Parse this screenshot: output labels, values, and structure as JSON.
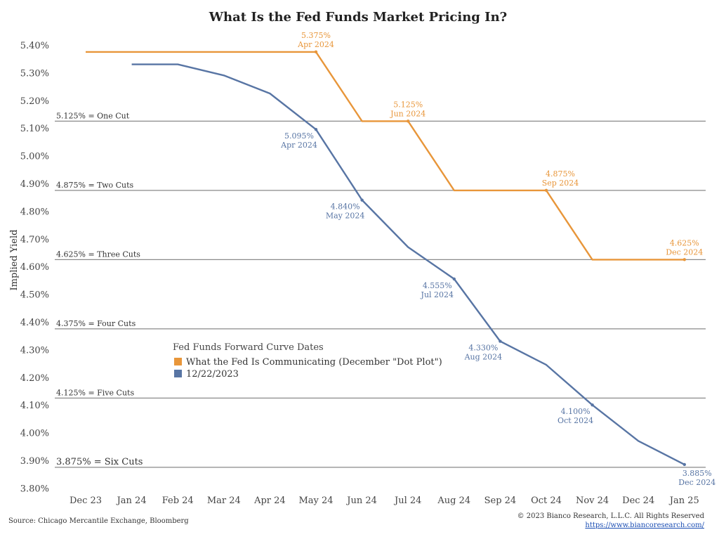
{
  "chart_data": {
    "type": "line",
    "title": "What Is the Fed Funds Market Pricing In?",
    "ylabel": "Implied Yield",
    "xlabel": "",
    "ylim": [
      3.8,
      5.4
    ],
    "yticks": [
      "5.40%",
      "5.30%",
      "5.20%",
      "5.10%",
      "5.00%",
      "4.90%",
      "4.80%",
      "4.70%",
      "4.60%",
      "4.50%",
      "4.40%",
      "4.30%",
      "4.20%",
      "4.10%",
      "4.00%",
      "3.90%",
      "3.80%"
    ],
    "ytick_values": [
      5.4,
      5.3,
      5.2,
      5.1,
      5.0,
      4.9,
      4.8,
      4.7,
      4.6,
      4.5,
      4.4,
      4.3,
      4.2,
      4.1,
      4.0,
      3.9,
      3.8
    ],
    "categories": [
      "Dec 23",
      "Jan 24",
      "Feb 24",
      "Mar 24",
      "Apr 24",
      "May 24",
      "Jun 24",
      "Jul 24",
      "Aug 24",
      "Sep 24",
      "Oct 24",
      "Nov 24",
      "Dec 24",
      "Jan 25"
    ],
    "grid": false,
    "legend": {
      "title": "Fed Funds Forward Curve Dates",
      "placement": "center-left",
      "entries": [
        {
          "label": "What the Fed Is Communicating (December \"Dot Plot\")",
          "color": "#E8963A"
        },
        {
          "label": "12/22/2023",
          "color": "#5875A4"
        }
      ]
    },
    "reference_lines": [
      {
        "label": "5.125% = One Cut",
        "value": 5.125
      },
      {
        "label": "4.875% = Two Cuts",
        "value": 4.875
      },
      {
        "label": "4.625% = Three Cuts",
        "value": 4.625
      },
      {
        "label": "4.375% = Four Cuts",
        "value": 4.375
      },
      {
        "label": "4.125% = Five Cuts",
        "value": 4.125
      },
      {
        "label": "3.875% = Six Cuts",
        "value": 3.875
      }
    ],
    "series": [
      {
        "color": "#E8963A",
        "x": [
          0,
          5,
          6,
          7,
          8,
          10,
          11,
          13
        ],
        "values": [
          5.375,
          5.375,
          5.125,
          5.125,
          4.875,
          4.875,
          4.625,
          4.625
        ]
      },
      {
        "color": "#5875A4",
        "x": [
          1,
          2,
          3,
          4,
          5,
          6,
          7,
          8,
          9,
          10,
          11,
          12,
          13
        ],
        "values": [
          5.33,
          5.33,
          5.29,
          5.225,
          5.095,
          4.84,
          4.67,
          4.555,
          4.33,
          4.245,
          4.1,
          3.97,
          3.885
        ]
      }
    ],
    "annotations": [
      {
        "value": "5.375%",
        "date": "Apr 2024",
        "x": 5,
        "y": 5.375,
        "color": "#E8963A",
        "pos": "above"
      },
      {
        "value": "5.125%",
        "date": "Jun 2024",
        "x": 7,
        "y": 5.125,
        "color": "#E8963A",
        "pos": "above"
      },
      {
        "value": "4.875%",
        "date": "Sep 2024",
        "x": 10,
        "y": 4.875,
        "color": "#E8963A",
        "pos": "above-right"
      },
      {
        "value": "4.625%",
        "date": "Dec 2024",
        "x": 13,
        "y": 4.625,
        "color": "#E8963A",
        "pos": "above-left"
      },
      {
        "value": "5.095%",
        "date": "Apr 2024",
        "x": 5,
        "y": 5.095,
        "color": "#5875A4",
        "pos": "left"
      },
      {
        "value": "4.840%",
        "date": "May 2024",
        "x": 6,
        "y": 4.84,
        "color": "#5875A4",
        "pos": "left"
      },
      {
        "value": "4.555%",
        "date": "Jul 2024",
        "x": 8,
        "y": 4.555,
        "color": "#5875A4",
        "pos": "left"
      },
      {
        "value": "4.330%",
        "date": "Aug 2024",
        "x": 9,
        "y": 4.33,
        "color": "#5875A4",
        "pos": "left"
      },
      {
        "value": "4.100%",
        "date": "Oct 2024",
        "x": 11,
        "y": 4.1,
        "color": "#5875A4",
        "pos": "left"
      },
      {
        "value": "3.885%",
        "date": "Dec 2024",
        "x": 13,
        "y": 3.885,
        "color": "#5875A4",
        "pos": "below"
      }
    ]
  },
  "footer": {
    "source": "Source: Chicago Mercantile Exchange, Bloomberg",
    "copyright": "© 2023 Bianco Research, L.L.C. All Rights Reserved",
    "url": "https://www.biancoresearch.com/"
  }
}
